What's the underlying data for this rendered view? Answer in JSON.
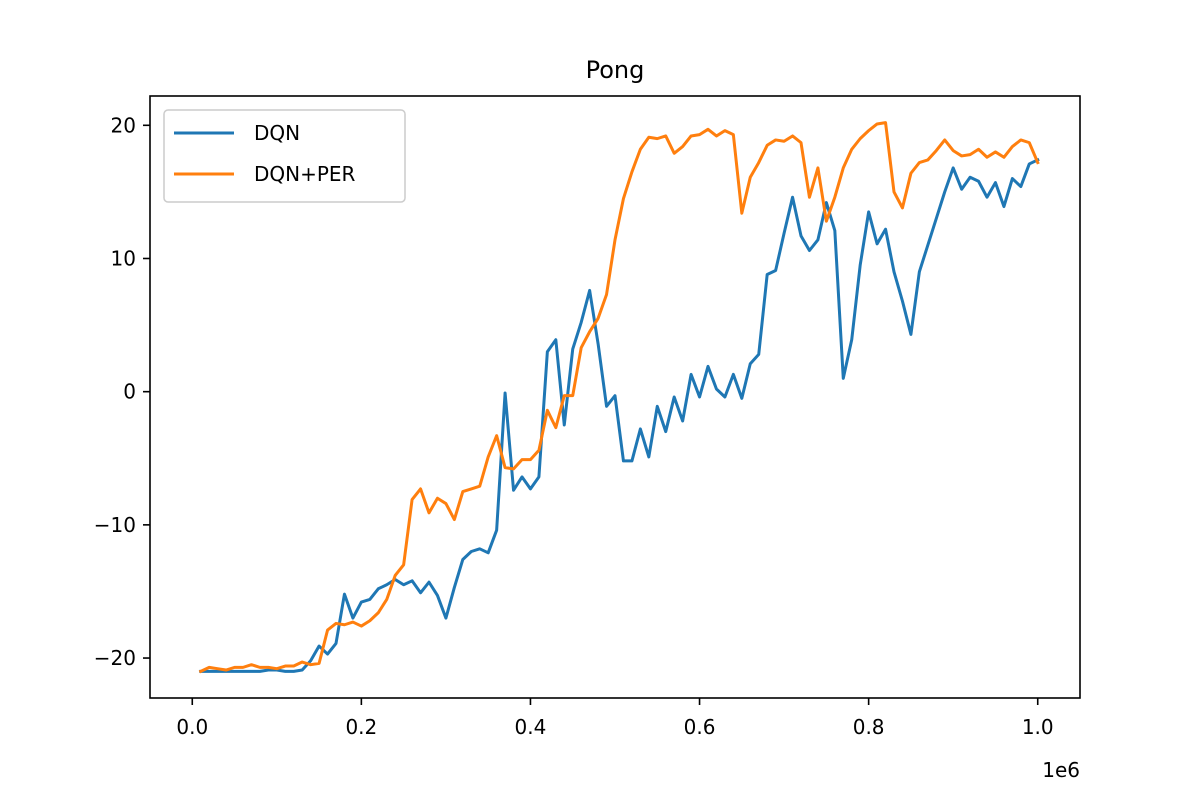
{
  "chart_data": {
    "type": "line",
    "title": "Pong",
    "xlabel": "",
    "ylabel": "",
    "x_offset_text": "1e6",
    "xlim": [
      -0.05,
      1.05
    ],
    "ylim": [
      -23,
      22.2
    ],
    "x_ticks": [
      0.0,
      0.2,
      0.4,
      0.6,
      0.8,
      1.0
    ],
    "x_tick_labels": [
      "0.0",
      "0.2",
      "0.4",
      "0.6",
      "0.8",
      "1.0"
    ],
    "y_ticks": [
      -20,
      -10,
      0,
      10,
      20
    ],
    "y_tick_labels": [
      "−20",
      "−10",
      "0",
      "10",
      "20"
    ],
    "grid": false,
    "legend_position": "top-left",
    "x": [
      0.01,
      0.02,
      0.03,
      0.04,
      0.05,
      0.06,
      0.07,
      0.08,
      0.09,
      0.1,
      0.11,
      0.12,
      0.13,
      0.14,
      0.15,
      0.16,
      0.17,
      0.18,
      0.19,
      0.2,
      0.21,
      0.22,
      0.23,
      0.24,
      0.25,
      0.26,
      0.27,
      0.28,
      0.29,
      0.3,
      0.31,
      0.32,
      0.33,
      0.34,
      0.35,
      0.36,
      0.37,
      0.38,
      0.39,
      0.4,
      0.41,
      0.42,
      0.43,
      0.44,
      0.45,
      0.46,
      0.47,
      0.48,
      0.49,
      0.5,
      0.51,
      0.52,
      0.53,
      0.54,
      0.55,
      0.56,
      0.57,
      0.58,
      0.59,
      0.6,
      0.61,
      0.62,
      0.63,
      0.64,
      0.65,
      0.66,
      0.67,
      0.68,
      0.69,
      0.7,
      0.71,
      0.72,
      0.73,
      0.74,
      0.75,
      0.76,
      0.77,
      0.78,
      0.79,
      0.8,
      0.81,
      0.82,
      0.83,
      0.84,
      0.85,
      0.86,
      0.87,
      0.88,
      0.89,
      0.9,
      0.91,
      0.92,
      0.93,
      0.94,
      0.95,
      0.96,
      0.97,
      0.98,
      0.99,
      1.0
    ],
    "series": [
      {
        "name": "DQN",
        "color": "#1f77b4",
        "values": [
          -21.0,
          -21.0,
          -21.0,
          -21.0,
          -21.0,
          -21.0,
          -21.0,
          -21.0,
          -20.9,
          -20.9,
          -21.0,
          -21.0,
          -20.9,
          -20.2,
          -19.1,
          -19.7,
          -18.9,
          -15.2,
          -17.0,
          -15.8,
          -15.6,
          -14.8,
          -14.5,
          -14.1,
          -14.5,
          -14.2,
          -15.1,
          -14.3,
          -15.3,
          -17.0,
          -14.7,
          -12.6,
          -12.0,
          -11.8,
          -12.1,
          -10.4,
          -0.1,
          -7.4,
          -6.4,
          -7.3,
          -6.4,
          3.0,
          3.9,
          -2.5,
          3.2,
          5.2,
          7.6,
          3.6,
          -1.1,
          -0.3,
          -5.2,
          -5.2,
          -2.8,
          -4.9,
          -1.1,
          -3.0,
          -0.4,
          -2.2,
          1.3,
          -0.4,
          1.9,
          0.2,
          -0.4,
          1.3,
          -0.5,
          2.1,
          2.8,
          8.8,
          9.1,
          11.9,
          14.6,
          11.7,
          10.6,
          11.4,
          14.2,
          12.1,
          1.0,
          3.9,
          9.5,
          13.5,
          11.1,
          12.2,
          9.0,
          6.8,
          4.3,
          9.0,
          11.0,
          13.0,
          15.0,
          16.8,
          15.2,
          16.1,
          15.8,
          14.6,
          15.7,
          13.9,
          16.0,
          15.4,
          17.1,
          17.4
        ]
      },
      {
        "name": "DQN+PER",
        "color": "#ff7f0e",
        "values": [
          -21.0,
          -20.7,
          -20.8,
          -20.9,
          -20.7,
          -20.7,
          -20.5,
          -20.7,
          -20.7,
          -20.8,
          -20.6,
          -20.6,
          -20.3,
          -20.5,
          -20.4,
          -17.9,
          -17.4,
          -17.5,
          -17.3,
          -17.6,
          -17.2,
          -16.6,
          -15.6,
          -13.8,
          -13.0,
          -8.1,
          -7.3,
          -9.1,
          -8.0,
          -8.4,
          -9.6,
          -7.5,
          -7.3,
          -7.1,
          -4.9,
          -3.3,
          -5.7,
          -5.8,
          -5.1,
          -5.1,
          -4.4,
          -1.4,
          -2.7,
          -0.3,
          -0.3,
          3.3,
          4.5,
          5.5,
          7.3,
          11.4,
          14.5,
          16.5,
          18.2,
          19.1,
          19.0,
          19.2,
          17.9,
          18.4,
          19.2,
          19.3,
          19.7,
          19.2,
          19.6,
          19.3,
          13.4,
          16.1,
          17.2,
          18.5,
          18.9,
          18.8,
          19.2,
          18.7,
          14.6,
          16.8,
          12.8,
          14.6,
          16.8,
          18.2,
          19.0,
          19.6,
          20.1,
          20.2,
          15.0,
          13.8,
          16.4,
          17.2,
          17.4,
          18.1,
          18.9,
          18.1,
          17.7,
          17.8,
          18.2,
          17.6,
          18.0,
          17.6,
          18.4,
          18.9,
          18.7,
          17.2
        ]
      }
    ]
  }
}
